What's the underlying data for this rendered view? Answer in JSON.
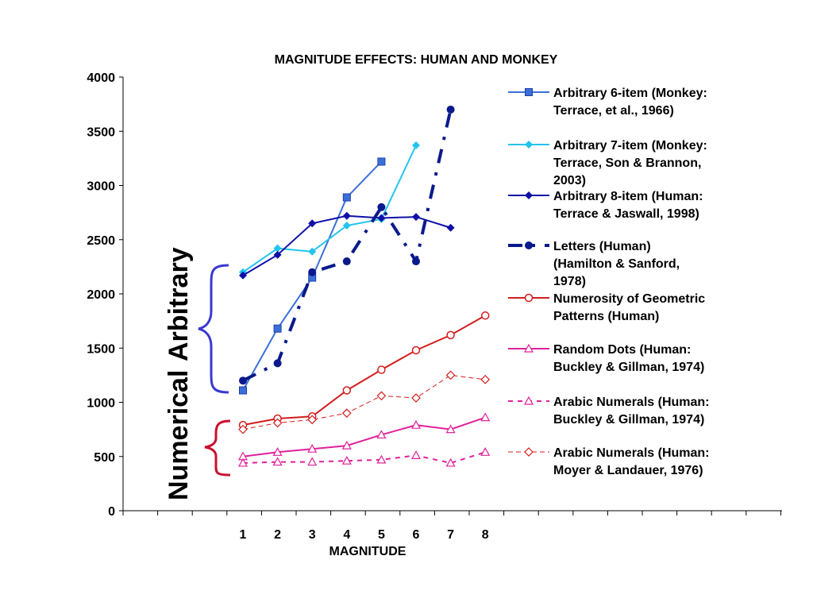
{
  "chart_data": {
    "type": "line",
    "title": "MAGNITUDE EFFECTS: HUMAN AND MONKEY",
    "xlabel": "MAGNITUDE",
    "ylabel": "",
    "ylim": [
      0,
      4000
    ],
    "yticks": [
      "0",
      "500",
      "1000",
      "1500",
      "2000",
      "2500",
      "3000",
      "3500",
      "4000"
    ],
    "x_categories": [
      "1",
      "2",
      "3",
      "4",
      "5",
      "6",
      "7",
      "8"
    ],
    "legend_position": "right",
    "grid": false,
    "series": [
      {
        "name_lines": [
          "Arbitrary 6-item (Monkey:",
          "Terrace, et al., 1966)"
        ],
        "color": "#3b6fd8",
        "marker": "square",
        "dash": "solid",
        "points": [
          [
            1,
            1110
          ],
          [
            2,
            1680
          ],
          [
            3,
            2150
          ],
          [
            4,
            2890
          ],
          [
            5,
            3220
          ]
        ]
      },
      {
        "name_lines": [
          "Arbitrary 7-item (Monkey:",
          "Terrace, Son & Brannon,",
          "2003)"
        ],
        "color": "#22c4ee",
        "marker": "diamond",
        "dash": "solid",
        "points": [
          [
            1,
            2200
          ],
          [
            2,
            2420
          ],
          [
            3,
            2390
          ],
          [
            4,
            2630
          ],
          [
            5,
            2690
          ],
          [
            6,
            3370
          ]
        ]
      },
      {
        "name_lines": [
          "Arbitrary 8-item (Human:",
          "Terrace & Jaswall, 1998)"
        ],
        "color": "#1010a8",
        "marker": "diamond",
        "dash": "solid",
        "points": [
          [
            1,
            2170
          ],
          [
            2,
            2360
          ],
          [
            3,
            2650
          ],
          [
            4,
            2720
          ],
          [
            5,
            2700
          ],
          [
            6,
            2710
          ],
          [
            7,
            2610
          ]
        ]
      },
      {
        "name_lines": [
          "Letters (Human)",
          "(Hamilton & Sanford,",
          "1978)"
        ],
        "color": "#0a1a8c",
        "marker": "circle",
        "dash": "dashdot",
        "points": [
          [
            1,
            1200
          ],
          [
            2,
            1360
          ],
          [
            3,
            2200
          ],
          [
            4,
            2300
          ],
          [
            5,
            2800
          ],
          [
            6,
            2300
          ],
          [
            7,
            3700
          ]
        ]
      },
      {
        "name_lines": [
          "Numerosity of Geometric",
          "Patterns (Human)"
        ],
        "color": "#d41c1c",
        "marker": "circle-open",
        "dash": "solid",
        "points": [
          [
            1,
            790
          ],
          [
            2,
            850
          ],
          [
            3,
            870
          ],
          [
            4,
            1110
          ],
          [
            5,
            1300
          ],
          [
            6,
            1480
          ],
          [
            7,
            1620
          ],
          [
            8,
            1800
          ]
        ]
      },
      {
        "name_lines": [
          "Random Dots (Human:",
          "Buckley & Gillman, 1974)"
        ],
        "color": "#e0209a",
        "marker": "triangle-open",
        "dash": "solid",
        "points": [
          [
            1,
            500
          ],
          [
            2,
            540
          ],
          [
            3,
            570
          ],
          [
            4,
            600
          ],
          [
            5,
            700
          ],
          [
            6,
            790
          ],
          [
            7,
            750
          ],
          [
            8,
            860
          ]
        ]
      },
      {
        "name_lines": [
          "Arabic Numerals (Human:",
          "Buckley & Gillman, 1974)"
        ],
        "color": "#e0209a",
        "marker": "triangle-open",
        "dash": "dashed",
        "points": [
          [
            1,
            440
          ],
          [
            2,
            450
          ],
          [
            3,
            450
          ],
          [
            4,
            460
          ],
          [
            5,
            470
          ],
          [
            6,
            510
          ],
          [
            7,
            440
          ],
          [
            8,
            540
          ]
        ]
      },
      {
        "name_lines": [
          "Arabic Numerals (Human:",
          "Moyer & Landauer, 1976)"
        ],
        "color": "#d41c1c",
        "marker": "diamond-open",
        "dash": "thin-dashed",
        "points": [
          [
            1,
            750
          ],
          [
            2,
            810
          ],
          [
            3,
            840
          ],
          [
            4,
            900
          ],
          [
            5,
            1060
          ],
          [
            6,
            1040
          ],
          [
            7,
            1250
          ],
          [
            8,
            1210
          ]
        ]
      }
    ],
    "annotations": {
      "arbitrary_label": "Arbitrary",
      "numerical_label": "Numerical",
      "arbitrary_color": "#3a3ad0",
      "numerical_color": "#c8102e"
    }
  }
}
